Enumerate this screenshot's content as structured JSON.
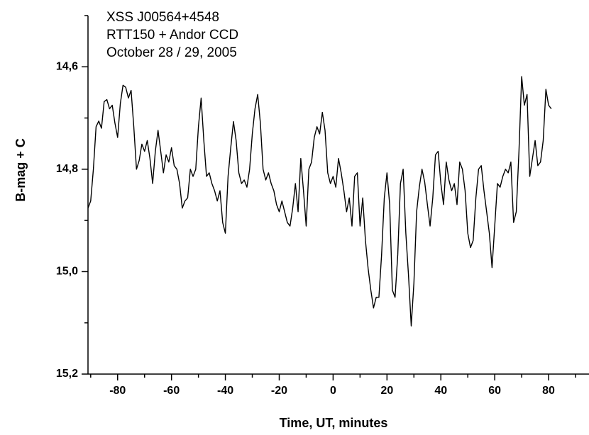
{
  "chart_data": {
    "type": "line",
    "annotations": [
      "XSS J00564+4548",
      "RTT150 + Andor CCD",
      "October 28 / 29, 2005"
    ],
    "x_label": "Time, UT, minutes",
    "y_label": "B-mag + C",
    "xlim": [
      -91,
      95
    ],
    "xticks": [
      -80,
      -60,
      -40,
      -20,
      0,
      20,
      40,
      60,
      80
    ],
    "xminorticks": [
      -90,
      -70,
      -50,
      -30,
      -10,
      10,
      30,
      50,
      70,
      90
    ],
    "ylim": [
      14.5,
      15.2
    ],
    "y_inverted": true,
    "yticks": [
      {
        "value": 14.6,
        "label": "14,6"
      },
      {
        "value": 14.8,
        "label": "14,8"
      },
      {
        "value": 15.0,
        "label": "15,0"
      },
      {
        "value": 15.2,
        "label": "15,2"
      }
    ],
    "yminorticks": [
      14.5,
      14.7,
      14.9,
      15.1
    ],
    "color": "#000000",
    "x": [
      -91,
      -90,
      -89,
      -88,
      -87,
      -86,
      -85,
      -84,
      -83,
      -82,
      -81,
      -80,
      -79,
      -78,
      -77,
      -76,
      -75,
      -74,
      -73,
      -72,
      -71,
      -70,
      -69,
      -68,
      -67,
      -66,
      -65,
      -64,
      -63,
      -62,
      -61,
      -60,
      -59,
      -58,
      -57,
      -56,
      -55,
      -54,
      -53,
      -52,
      -51,
      -50,
      -49,
      -48,
      -47,
      -46,
      -45,
      -44,
      -43,
      -42,
      -41,
      -40,
      -39,
      -38,
      -37,
      -36,
      -35,
      -34,
      -33,
      -32,
      -31,
      -30,
      -29,
      -28,
      -27,
      -26,
      -25,
      -24,
      -23,
      -22,
      -21,
      -20,
      -19,
      -18,
      -17,
      -16,
      -15,
      -14,
      -13,
      -12,
      -11,
      -10,
      -9,
      -8,
      -7,
      -6,
      -5,
      -4,
      -3,
      -2,
      -1,
      0,
      1,
      2,
      3,
      4,
      5,
      6,
      7,
      8,
      9,
      10,
      11,
      12,
      13,
      14,
      15,
      16,
      17,
      18,
      19,
      20,
      21,
      22,
      23,
      24,
      25,
      26,
      27,
      28,
      29,
      30,
      31,
      32,
      33,
      34,
      35,
      36,
      37,
      38,
      39,
      40,
      41,
      42,
      43,
      44,
      45,
      46,
      47,
      48,
      49,
      50,
      51,
      52,
      53,
      54,
      55,
      56,
      57,
      58,
      59,
      60,
      61,
      62,
      63,
      64,
      65,
      66,
      67,
      68,
      69,
      70,
      71,
      72,
      73,
      74,
      75,
      76,
      77,
      78,
      79,
      80,
      81
    ],
    "values": [
      14.876,
      14.862,
      14.8,
      14.717,
      14.706,
      14.72,
      14.668,
      14.664,
      14.682,
      14.675,
      14.71,
      14.738,
      14.672,
      14.636,
      14.64,
      14.661,
      14.646,
      14.717,
      14.8,
      14.783,
      14.751,
      14.765,
      14.744,
      14.779,
      14.828,
      14.765,
      14.724,
      14.765,
      14.807,
      14.772,
      14.786,
      14.758,
      14.793,
      14.8,
      14.828,
      14.876,
      14.862,
      14.856,
      14.8,
      14.814,
      14.8,
      14.717,
      14.661,
      14.744,
      14.814,
      14.807,
      14.828,
      14.842,
      14.862,
      14.842,
      14.904,
      14.925,
      14.814,
      14.758,
      14.707,
      14.744,
      14.807,
      14.828,
      14.821,
      14.835,
      14.8,
      14.731,
      14.682,
      14.654,
      14.71,
      14.8,
      14.821,
      14.807,
      14.828,
      14.842,
      14.869,
      14.883,
      14.862,
      14.883,
      14.904,
      14.911,
      14.876,
      14.828,
      14.883,
      14.779,
      14.842,
      14.911,
      14.8,
      14.786,
      14.738,
      14.717,
      14.731,
      14.689,
      14.724,
      14.807,
      14.828,
      14.814,
      14.835,
      14.779,
      14.807,
      14.842,
      14.883,
      14.856,
      14.911,
      14.814,
      14.807,
      14.911,
      14.856,
      14.939,
      14.994,
      15.036,
      15.071,
      15.05,
      15.05,
      14.967,
      14.856,
      14.807,
      14.869,
      15.036,
      15.05,
      14.967,
      14.828,
      14.8,
      14.925,
      15.008,
      15.106,
      15.022,
      14.883,
      14.835,
      14.8,
      14.825,
      14.869,
      14.911,
      14.856,
      14.772,
      14.765,
      14.828,
      14.869,
      14.786,
      14.821,
      14.842,
      14.828,
      14.869,
      14.786,
      14.8,
      14.842,
      14.925,
      14.953,
      14.939,
      14.856,
      14.8,
      14.793,
      14.842,
      14.883,
      14.925,
      14.992,
      14.911,
      14.828,
      14.835,
      14.814,
      14.8,
      14.807,
      14.786,
      14.904,
      14.883,
      14.765,
      14.619,
      14.675,
      14.654,
      14.814,
      14.779,
      14.744,
      14.793,
      14.786,
      14.744,
      14.644,
      14.675,
      14.682
    ]
  }
}
